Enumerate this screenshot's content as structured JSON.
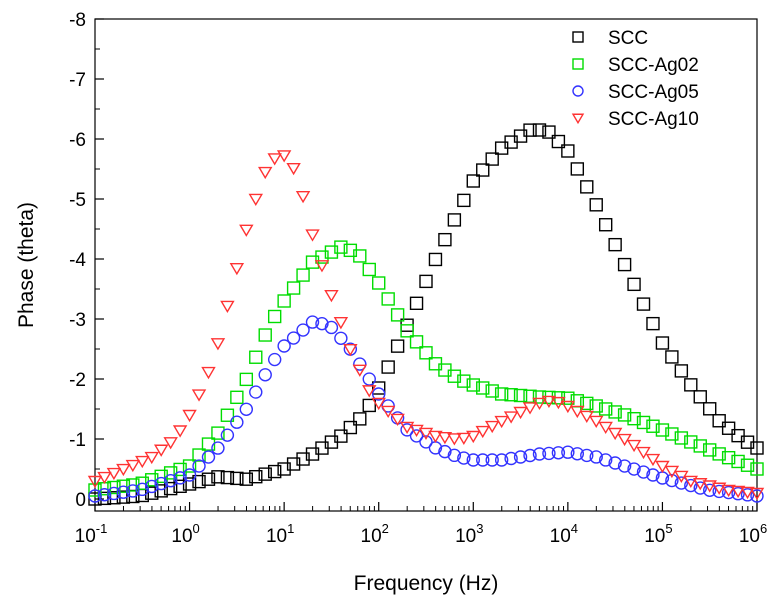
{
  "chart_data": {
    "type": "scatter",
    "xlabel": "Frequency (Hz)",
    "ylabel": "Phase (theta)",
    "x_scale": "log",
    "xlim": [
      0.1,
      1000000
    ],
    "ylim": [
      0.2,
      -8
    ],
    "x_tick_labels": [
      {
        "base": "10",
        "exp": "-1"
      },
      {
        "base": "10",
        "exp": "0"
      },
      {
        "base": "10",
        "exp": "1"
      },
      {
        "base": "10",
        "exp": "2"
      },
      {
        "base": "10",
        "exp": "3"
      },
      {
        "base": "10",
        "exp": "4"
      },
      {
        "base": "10",
        "exp": "5"
      },
      {
        "base": "10",
        "exp": "6"
      }
    ],
    "y_tick_labels": [
      "-8",
      "-7",
      "-6",
      "-5",
      "-4",
      "-3",
      "-2",
      "-1",
      "0"
    ],
    "legend_position": "top-right",
    "grid": false,
    "series": [
      {
        "name": "SCC",
        "marker": "square",
        "color": "#000000",
        "points": [
          [
            0.1,
            0
          ],
          [
            0.3,
            -0.05
          ],
          [
            1,
            -0.25
          ],
          [
            2,
            -0.37
          ],
          [
            4,
            -0.33
          ],
          [
            10,
            -0.5
          ],
          [
            20,
            -0.75
          ],
          [
            40,
            -1.05
          ],
          [
            70,
            -1.4
          ],
          [
            100,
            -1.85
          ],
          [
            200,
            -2.9
          ],
          [
            400,
            -4.0
          ],
          [
            700,
            -4.8
          ],
          [
            1000,
            -5.3
          ],
          [
            2000,
            -5.85
          ],
          [
            4000,
            -6.15
          ],
          [
            6000,
            -6.15
          ],
          [
            10000,
            -5.8
          ],
          [
            20000,
            -4.9
          ],
          [
            40000,
            -3.9
          ],
          [
            70000,
            -3.1
          ],
          [
            100000,
            -2.6
          ],
          [
            200000,
            -1.9
          ],
          [
            400000,
            -1.3
          ],
          [
            700000,
            -1.0
          ],
          [
            1000000,
            -0.85
          ]
        ]
      },
      {
        "name": "SCC-Ag02",
        "marker": "square",
        "color": "#00dd00",
        "points": [
          [
            0.1,
            -0.15
          ],
          [
            0.3,
            -0.25
          ],
          [
            1,
            -0.55
          ],
          [
            2,
            -1.1
          ],
          [
            4,
            -2.0
          ],
          [
            7,
            -2.9
          ],
          [
            10,
            -3.3
          ],
          [
            20,
            -3.95
          ],
          [
            40,
            -4.2
          ],
          [
            60,
            -4.1
          ],
          [
            100,
            -3.6
          ],
          [
            200,
            -2.8
          ],
          [
            400,
            -2.25
          ],
          [
            700,
            -2.0
          ],
          [
            1000,
            -1.9
          ],
          [
            2000,
            -1.75
          ],
          [
            5000,
            -1.7
          ],
          [
            10000,
            -1.68
          ],
          [
            20000,
            -1.55
          ],
          [
            40000,
            -1.4
          ],
          [
            100000,
            -1.15
          ],
          [
            200000,
            -0.95
          ],
          [
            400000,
            -0.75
          ],
          [
            1000000,
            -0.5
          ]
        ]
      },
      {
        "name": "SCC-Ag05",
        "marker": "circle",
        "color": "#3333ff",
        "points": [
          [
            0.1,
            -0.05
          ],
          [
            0.3,
            -0.15
          ],
          [
            1,
            -0.4
          ],
          [
            2,
            -0.85
          ],
          [
            4,
            -1.5
          ],
          [
            7,
            -2.2
          ],
          [
            10,
            -2.55
          ],
          [
            20,
            -2.95
          ],
          [
            30,
            -2.9
          ],
          [
            50,
            -2.5
          ],
          [
            100,
            -1.75
          ],
          [
            200,
            -1.15
          ],
          [
            400,
            -0.85
          ],
          [
            700,
            -0.7
          ],
          [
            1000,
            -0.65
          ],
          [
            2000,
            -0.65
          ],
          [
            5000,
            -0.75
          ],
          [
            10000,
            -0.78
          ],
          [
            20000,
            -0.7
          ],
          [
            50000,
            -0.5
          ],
          [
            100000,
            -0.35
          ],
          [
            300000,
            -0.15
          ],
          [
            1000000,
            -0.05
          ]
        ]
      },
      {
        "name": "SCC-Ag10",
        "marker": "triangle-down",
        "color": "#ff3333",
        "points": [
          [
            0.1,
            -0.3
          ],
          [
            0.2,
            -0.5
          ],
          [
            0.4,
            -0.7
          ],
          [
            0.7,
            -1.0
          ],
          [
            1,
            -1.4
          ],
          [
            1.5,
            -2.0
          ],
          [
            2,
            -2.6
          ],
          [
            3,
            -3.7
          ],
          [
            4,
            -4.5
          ],
          [
            6,
            -5.4
          ],
          [
            9,
            -5.8
          ],
          [
            12,
            -5.6
          ],
          [
            15,
            -5.2
          ],
          [
            20,
            -4.4
          ],
          [
            30,
            -3.5
          ],
          [
            50,
            -2.5
          ],
          [
            80,
            -1.8
          ],
          [
            100,
            -1.6
          ],
          [
            200,
            -1.2
          ],
          [
            400,
            -1.05
          ],
          [
            700,
            -1.0
          ],
          [
            1000,
            -1.05
          ],
          [
            2000,
            -1.3
          ],
          [
            5000,
            -1.6
          ],
          [
            7000,
            -1.65
          ],
          [
            10000,
            -1.55
          ],
          [
            20000,
            -1.3
          ],
          [
            50000,
            -0.9
          ],
          [
            100000,
            -0.55
          ],
          [
            200000,
            -0.3
          ],
          [
            500000,
            -0.15
          ],
          [
            1000000,
            -0.1
          ]
        ]
      }
    ]
  }
}
